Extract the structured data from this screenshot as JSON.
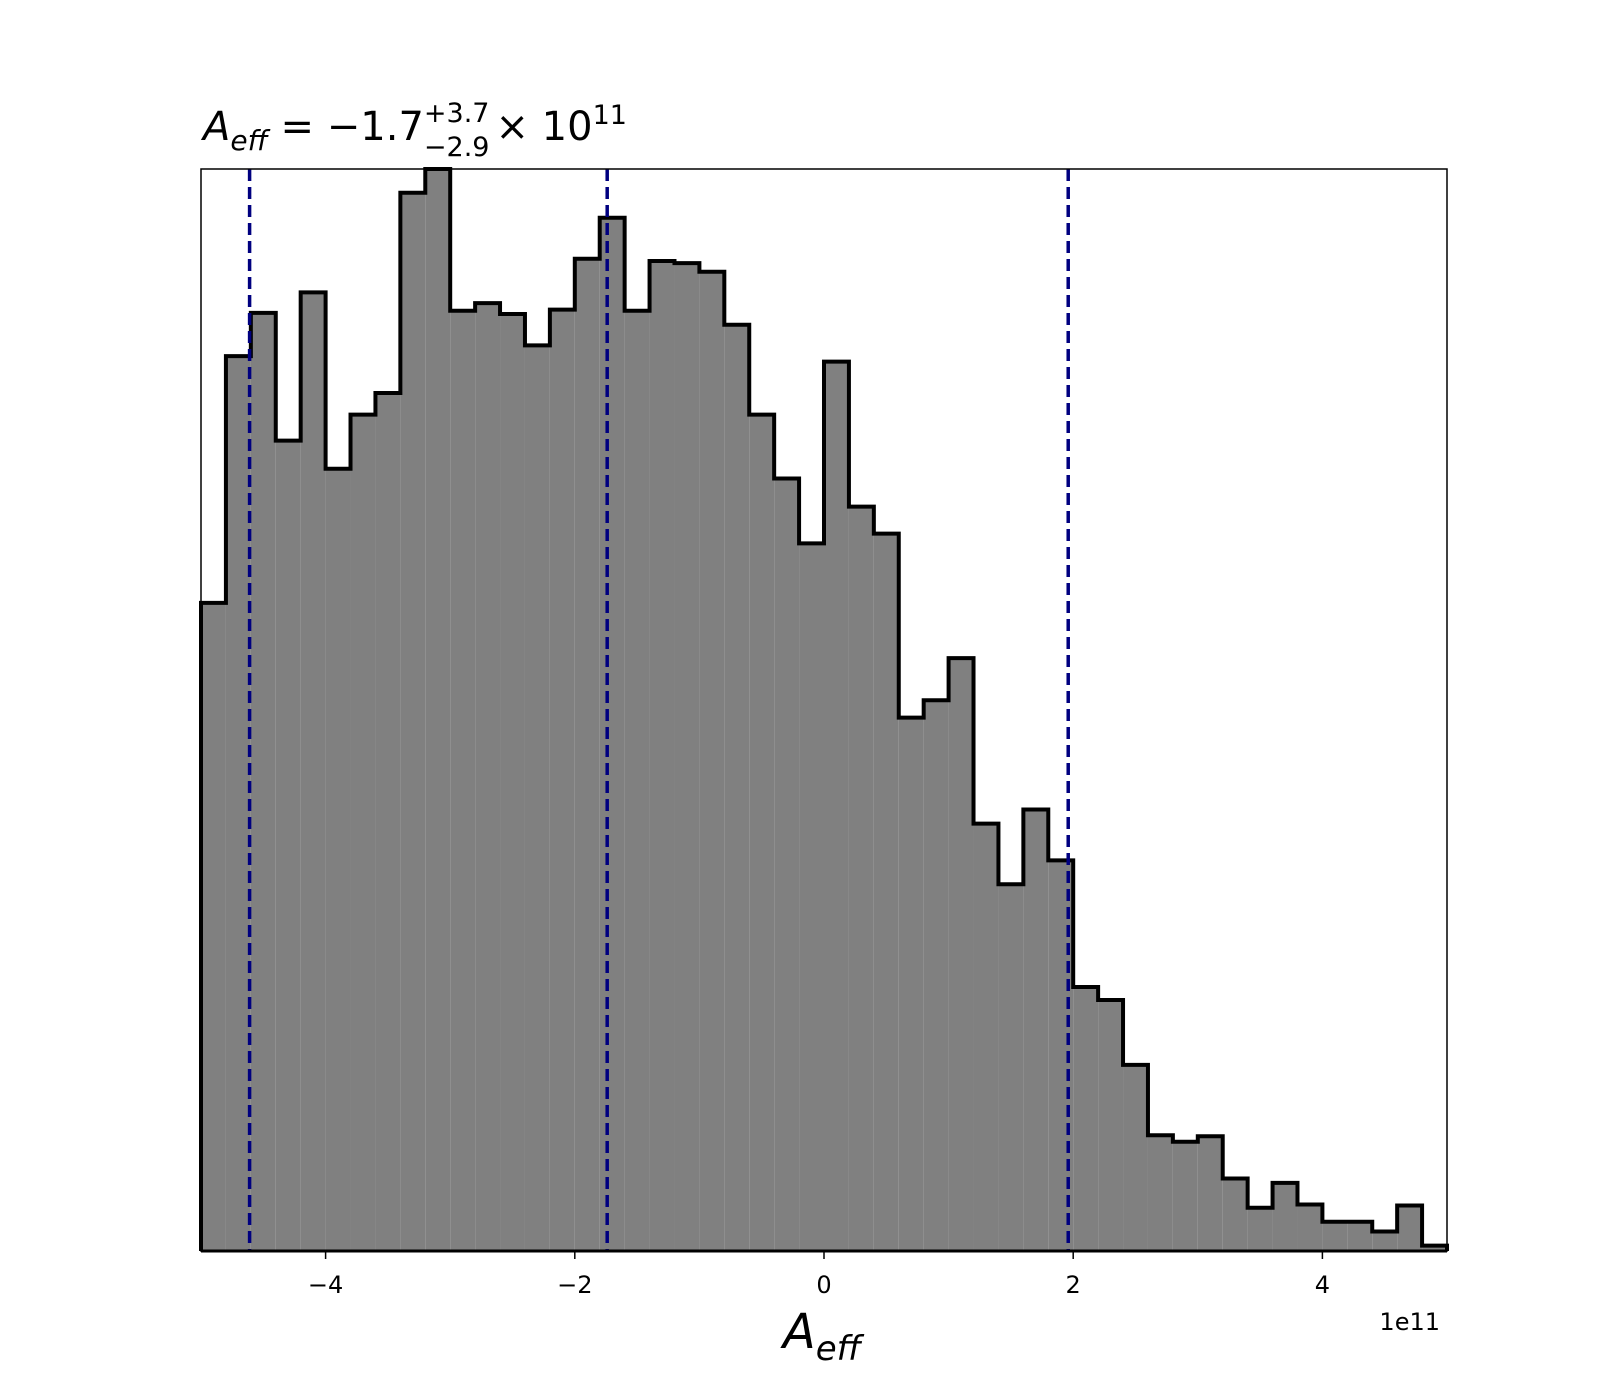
{
  "chart_data": {
    "type": "histogram",
    "title": {
      "symbol": "A",
      "symbol_sub": "eff",
      "text": " = −1.7",
      "sup": "+3.7",
      "sub": "−2.9",
      "times": "× 10",
      "exp": "11"
    },
    "x_label": {
      "symbol": "A",
      "sub": "eff"
    },
    "x_offset_label": "1e11",
    "bins": [
      -5.0,
      -4.8,
      -4.6,
      -4.4,
      -4.2,
      -4.0,
      -3.8,
      -3.6,
      -3.4,
      -3.2,
      -3.0,
      -2.8,
      -2.6,
      -2.4,
      -2.2,
      -2.0,
      -1.8,
      -1.6,
      -1.4,
      -1.2,
      -1.0,
      -0.8,
      -0.6,
      -0.4,
      -0.2,
      0.0,
      0.2,
      0.4,
      0.6,
      0.8,
      1.0,
      1.2,
      1.4,
      1.6,
      1.8,
      2.0,
      2.2,
      2.4,
      2.6,
      2.8,
      3.0,
      3.2,
      3.4,
      3.6,
      3.8,
      4.0,
      4.2,
      4.4,
      4.6,
      4.8,
      5.0
    ],
    "counts": [
      59.9,
      82.7,
      86.7,
      74.9,
      88.6,
      72.3,
      77.3,
      79.3,
      97.8,
      100,
      86.9,
      87.6,
      86.6,
      83.7,
      87.0,
      91.7,
      95.5,
      86.9,
      91.5,
      91.3,
      90.5,
      85.6,
      77.3,
      71.4,
      65.4,
      82.2,
      68.8,
      66.3,
      49.3,
      50.9,
      54.8,
      39.5,
      33.9,
      40.8,
      36.1,
      24.4,
      23.2,
      17.2,
      10.7,
      10.1,
      10.6,
      6.7,
      4.0,
      6.3,
      4.3,
      2.7,
      2.7,
      1.8,
      4.2,
      0.5
    ],
    "color": "#808080",
    "edge_color": "#000000",
    "vlines": [
      -4.61,
      -1.74,
      1.96
    ],
    "vline_color": "#000080",
    "xlim": [
      -5,
      5
    ],
    "ylim": [
      0,
      100
    ],
    "xticks": [
      {
        "value": -4,
        "label": "−4"
      },
      {
        "value": -2,
        "label": "−2"
      },
      0,
      2,
      4
    ]
  }
}
